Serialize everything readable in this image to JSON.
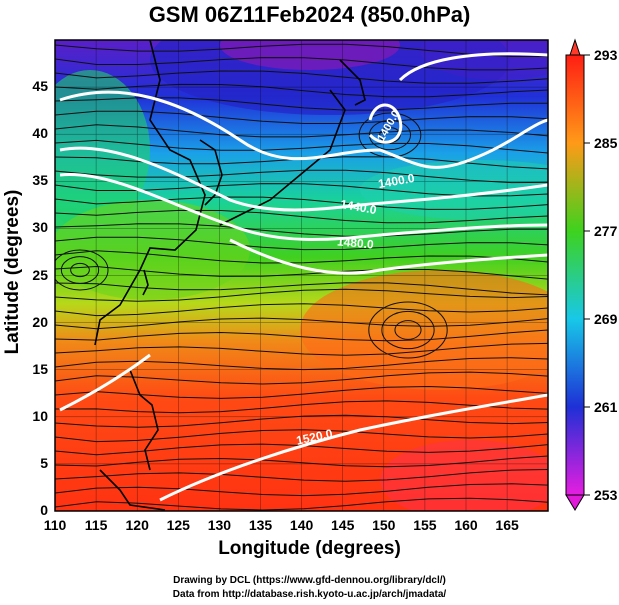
{
  "title": "GSM 06Z11Feb2024 (850.0hPa)",
  "xlabel": "Longitude (degrees)",
  "ylabel": "Latitude  (degrees)",
  "x_ticks": [
    "110",
    "115",
    "120",
    "125",
    "130",
    "135",
    "140",
    "145",
    "150",
    "155",
    "160",
    "165"
  ],
  "y_ticks": [
    "0",
    "5",
    "10",
    "15",
    "20",
    "25",
    "30",
    "35",
    "40",
    "45"
  ],
  "colorbar_ticks": [
    "293",
    "285",
    "277",
    "269",
    "261",
    "253"
  ],
  "contour_labels": [
    "1400.0",
    "1440.0",
    "1480.0",
    "1520.0",
    "1400.0"
  ],
  "credits": {
    "line1": "Drawing by DCL (https://www.gfd-dennou.org/library/dcl/)",
    "line2": "Data from http://database.rish.kyoto-u.ac.jp/arch/jmadata/"
  },
  "colors": {
    "cold": "#1a2fd0",
    "mid": "#18c030",
    "warm": "#ff3a10"
  },
  "chart_data": {
    "type": "heatmap",
    "field": "850hPa temperature with streamlines and geopotential height contours",
    "xlim": [
      110,
      170
    ],
    "ylim": [
      0,
      50
    ],
    "colorbar_range": [
      253,
      293
    ],
    "colorbar_ticks": [
      253,
      261,
      269,
      277,
      285,
      293
    ],
    "contours": [
      {
        "label": "1400.0",
        "value": 1400
      },
      {
        "label": "1440.0",
        "value": 1440
      },
      {
        "label": "1480.0",
        "value": 1480
      },
      {
        "label": "1520.0",
        "value": 1520
      }
    ]
  }
}
